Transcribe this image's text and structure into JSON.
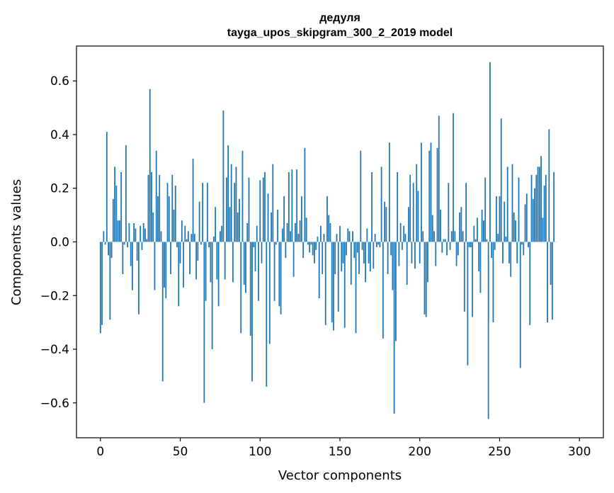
{
  "chart_data": {
    "type": "bar",
    "title": "дедуля",
    "subtitle": "tayga_upos_skipgram_300_2_2019 model",
    "xlabel": "Vector components",
    "ylabel": "Components values",
    "xlim": [
      -15,
      315
    ],
    "ylim": [
      -0.73,
      0.73
    ],
    "xticks": [
      0,
      50,
      100,
      150,
      200,
      250,
      300
    ],
    "yticks": [
      -0.6,
      -0.4,
      -0.2,
      0.0,
      0.2,
      0.4,
      0.6
    ],
    "ytick_labels": [
      "−0.6",
      "−0.4",
      "−0.2",
      "0.0",
      "0.2",
      "0.4",
      "0.6"
    ],
    "bar_color": "#1f77b4",
    "series": [
      {
        "name": "components",
        "values": [
          -0.34,
          -0.31,
          0.04,
          -0.01,
          0.41,
          -0.05,
          -0.29,
          -0.06,
          0.16,
          0.28,
          0.21,
          0.08,
          0.08,
          0.26,
          -0.12,
          -0.01,
          0.36,
          -0.02,
          0.07,
          -0.09,
          -0.18,
          0.07,
          0.05,
          -0.07,
          -0.27,
          0.06,
          -0.03,
          0.07,
          0.05,
          0.01,
          0.25,
          0.57,
          0.26,
          0.11,
          -0.18,
          0.34,
          0.17,
          0.25,
          0.04,
          -0.52,
          -0.17,
          -0.21,
          0.22,
          0.17,
          -0.12,
          0.25,
          0.12,
          0.21,
          -0.02,
          -0.24,
          -0.08,
          0.08,
          -0.17,
          0.06,
          0.01,
          0.04,
          -0.12,
          0.03,
          0.31,
          0.03,
          -0.14,
          -0.07,
          0.15,
          -0.01,
          0.22,
          -0.6,
          -0.22,
          0.22,
          -0.02,
          -0.15,
          -0.4,
          0.02,
          0.13,
          -0.14,
          -0.24,
          0.04,
          0.06,
          0.49,
          -0.14,
          0.24,
          0.36,
          0.13,
          0.29,
          -0.15,
          0.22,
          0.28,
          0.11,
          0.16,
          -0.34,
          0.34,
          -0.16,
          -0.19,
          0.07,
          0.24,
          -0.35,
          -0.52,
          -0.02,
          -0.11,
          0.06,
          -0.22,
          0.23,
          -0.08,
          0.24,
          0.26,
          -0.54,
          0.18,
          -0.38,
          0.11,
          0.29,
          -0.22,
          -0.01,
          0.12,
          -0.24,
          -0.27,
          0.05,
          0.17,
          -0.06,
          0.07,
          0.26,
          0.04,
          0.27,
          -0.13,
          0.07,
          0.27,
          0.03,
          0.08,
          0.17,
          -0.06,
          0.35,
          0.09,
          -0.01,
          -0.04,
          -0.01,
          -0.05,
          -0.08,
          -0.03,
          0.02,
          -0.21,
          0.06,
          -0.12,
          0.03,
          -0.31,
          0.17,
          0.1,
          0.07,
          -0.3,
          -0.33,
          -0.12,
          0.03,
          -0.26,
          0.06,
          -0.11,
          -0.08,
          -0.32,
          -0.05,
          0.05,
          0.04,
          -0.16,
          0.04,
          -0.06,
          -0.34,
          -0.04,
          -0.12,
          0.34,
          -0.03,
          -0.08,
          -0.15,
          0.05,
          -0.08,
          -0.11,
          0.26,
          -0.1,
          0.03,
          -0.02,
          -0.01,
          -0.02,
          0.28,
          -0.36,
          0.15,
          0.13,
          -0.12,
          0.37,
          -0.05,
          -0.18,
          -0.64,
          -0.37,
          0.26,
          -0.09,
          0.07,
          -0.03,
          0.06,
          0.03,
          -0.16,
          0.13,
          0.25,
          -0.08,
          0.22,
          -0.1,
          0.29,
          0.19,
          -0.08,
          0.37,
          0.04,
          -0.27,
          -0.28,
          -0.15,
          0.34,
          0.37,
          0.1,
          0.04,
          -0.09,
          0.35,
          0.47,
          0.12,
          -0.04,
          0.01,
          0.01,
          -0.05,
          0.22,
          -0.03,
          0.04,
          0.48,
          0.04,
          -0.09,
          -0.05,
          0.11,
          0.13,
          0.04,
          -0.26,
          0.22,
          -0.46,
          -0.02,
          -0.02,
          -0.28,
          0.06,
          0.01,
          0.09,
          -0.11,
          -0.19,
          0.12,
          0.08,
          0.24,
          0.01,
          -0.66,
          0.67,
          -0.06,
          -0.3,
          -0.03,
          0.17,
          0.03,
          0.17,
          0.46,
          -0.08,
          0.15,
          0.02,
          0.28,
          -0.08,
          -0.13,
          0.29,
          0.11,
          0.08,
          -0.08,
          0.24,
          -0.47,
          -0.01,
          -0.05,
          0.14,
          0.18,
          -0.02,
          -0.31,
          0.25,
          0.16,
          0.2,
          0.25,
          0.28,
          0.28,
          0.32,
          0.09,
          0.21,
          0.25,
          -0.3,
          0.42,
          -0.16,
          -0.29,
          0.26,
          0.0
        ],
        "highlighted_labels": []
      }
    ],
    "grid": false,
    "legend": "none"
  }
}
